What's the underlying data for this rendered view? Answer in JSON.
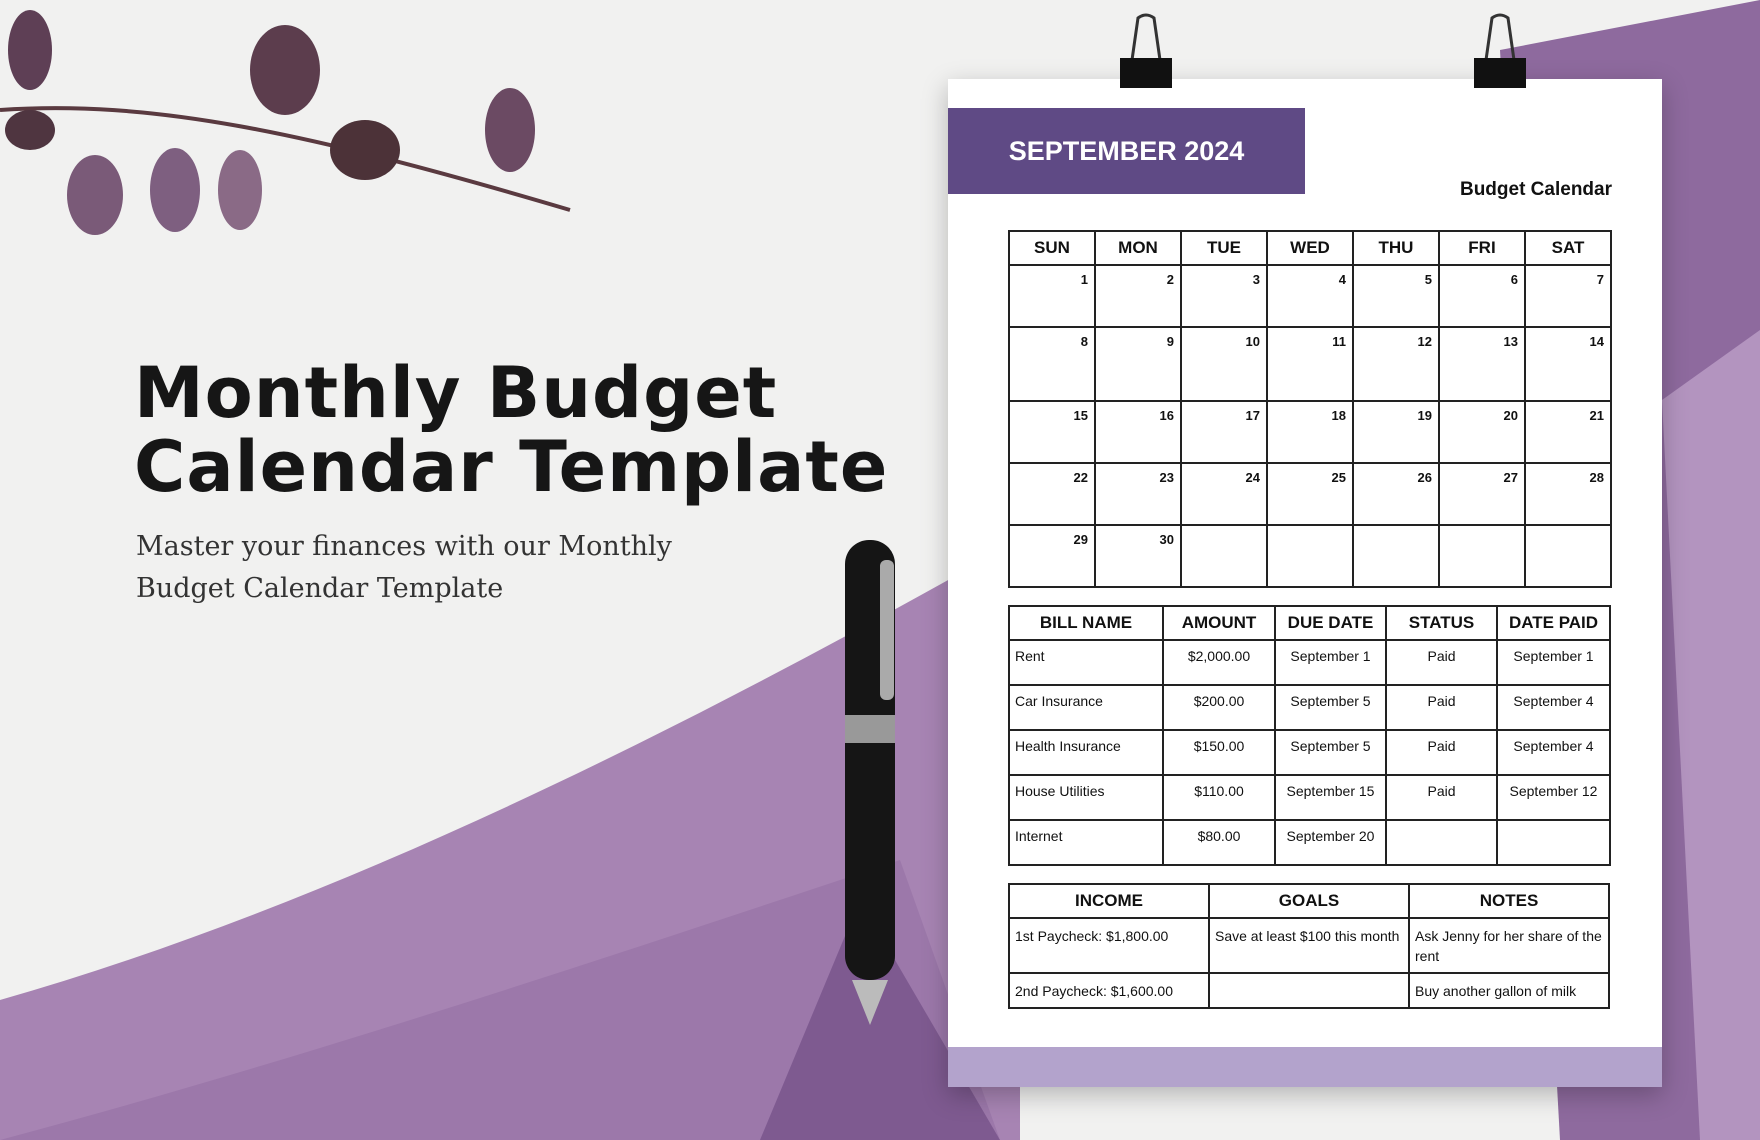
{
  "hero": {
    "title_line1": "Monthly Budget",
    "title_line2": "Calendar Template",
    "subtitle": "Master your finances with our Monthly Budget Calendar Template"
  },
  "document": {
    "month": "SEPTEMBER 2024",
    "subtitle": "Budget Calendar",
    "weekdays": [
      "SUN",
      "MON",
      "TUE",
      "WED",
      "THU",
      "FRI",
      "SAT"
    ],
    "weeks": [
      [
        "",
        "",
        "",
        "",
        "",
        "",
        ""
      ]
    ],
    "days": [
      [
        "1",
        "2",
        "3",
        "4",
        "5",
        "6",
        "7"
      ],
      [
        "8",
        "9",
        "10",
        "11",
        "12",
        "13",
        "14"
      ],
      [
        "15",
        "16",
        "17",
        "18",
        "19",
        "20",
        "21"
      ],
      [
        "22",
        "23",
        "24",
        "25",
        "26",
        "27",
        "28"
      ],
      [
        "29",
        "30",
        "",
        "",
        "",
        "",
        ""
      ]
    ],
    "bills": {
      "headers": [
        "BILL NAME",
        "AMOUNT",
        "DUE DATE",
        "STATUS",
        "DATE PAID"
      ],
      "rows": [
        [
          "Rent",
          "$2,000.00",
          "September 1",
          "Paid",
          "September 1"
        ],
        [
          "Car Insurance",
          "$200.00",
          "September 5",
          "Paid",
          "September 4"
        ],
        [
          "Health Insurance",
          "$150.00",
          "September 5",
          "Paid",
          "September 4"
        ],
        [
          "House Utilities",
          "$110.00",
          "September 15",
          "Paid",
          "September 12"
        ],
        [
          "Internet",
          "$80.00",
          "September 20",
          "",
          ""
        ]
      ]
    },
    "summary": {
      "headers": [
        "INCOME",
        "GOALS",
        "NOTES"
      ],
      "rows": [
        [
          "1st Paycheck: $1,800.00",
          "Save at least $100 this month",
          "Ask Jenny for her share of the rent"
        ],
        [
          "2nd Paycheck: $1,600.00",
          "",
          "Buy another gallon of milk"
        ]
      ]
    }
  },
  "colors": {
    "accent": "#5f4a85",
    "band": "#b3a3cc",
    "bg_purple": "#8e6a9e"
  }
}
